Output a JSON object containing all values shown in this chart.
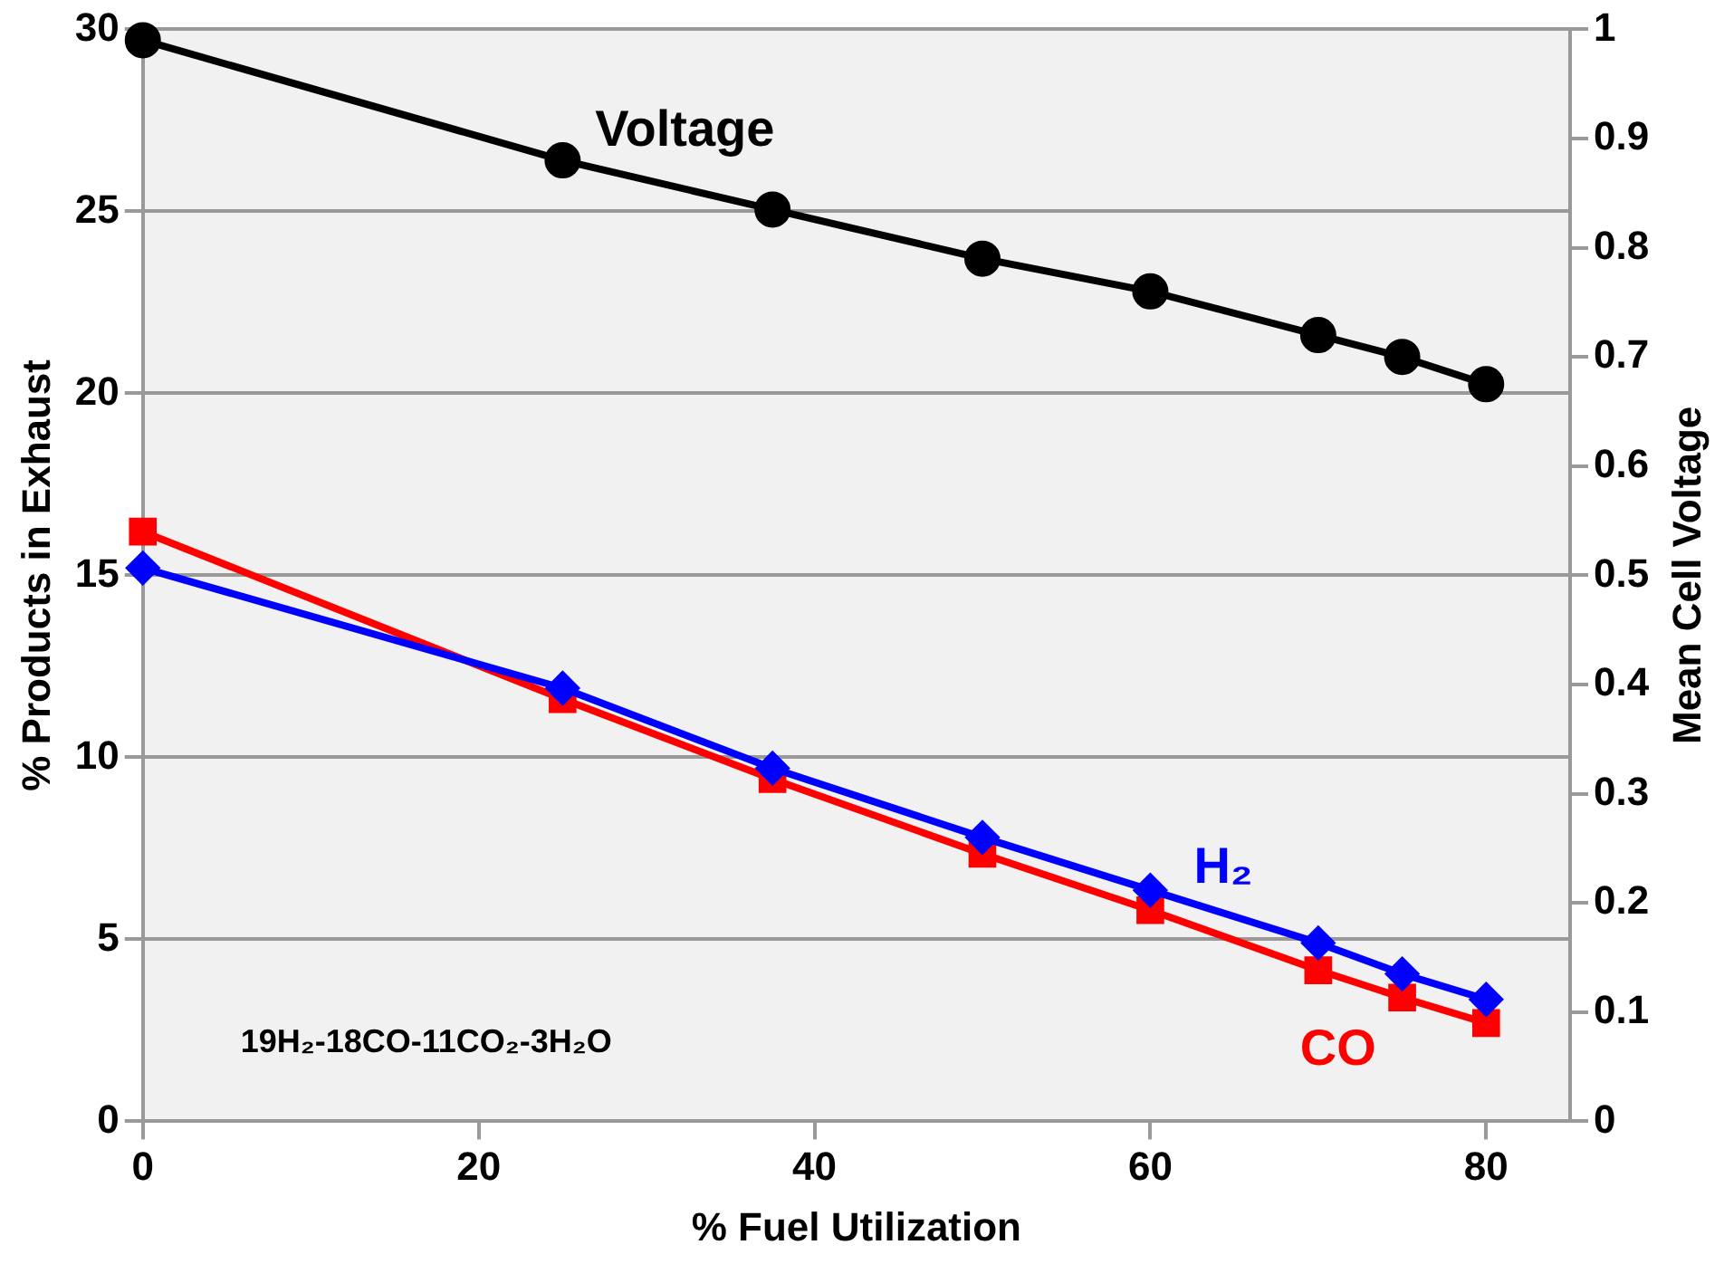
{
  "chart_data": {
    "type": "line",
    "xlabel": "% Fuel Utilization",
    "ylabel": "% Products in Exhaust",
    "y2label": "Mean Cell Voltage",
    "x": [
      0,
      25,
      37.5,
      50,
      60,
      70,
      75,
      80
    ],
    "xlim": [
      0,
      85
    ],
    "xticks": [
      0,
      20,
      40,
      60,
      80
    ],
    "ylim": [
      0,
      30
    ],
    "yticks": [
      0,
      5,
      10,
      15,
      20,
      25,
      30
    ],
    "y2lim": [
      0,
      1
    ],
    "y2ticks": [
      0,
      0.1,
      0.2,
      0.3,
      0.4,
      0.5,
      0.6,
      0.7,
      0.8,
      0.9,
      1
    ],
    "grid": "y",
    "legend": false,
    "line_style": "solid",
    "series": [
      {
        "name": "Voltage",
        "color": "#000000",
        "axis": "y2",
        "marker": "circle",
        "values": [
          0.99,
          0.88,
          0.835,
          0.79,
          0.76,
          0.72,
          0.7,
          0.675
        ]
      },
      {
        "name": "H₂",
        "color": "#0000ff",
        "marker": "diamond",
        "values": [
          15.2,
          11.9,
          9.7,
          7.8,
          6.35,
          4.9,
          4.05,
          3.35
        ]
      },
      {
        "name": "CO",
        "color": "#ff0000",
        "marker": "square",
        "values": [
          16.2,
          11.6,
          9.4,
          7.35,
          5.8,
          4.15,
          3.4,
          2.7
        ]
      }
    ],
    "annotations": [
      "19H₂-18CO-11CO₂-3H₂O"
    ]
  }
}
